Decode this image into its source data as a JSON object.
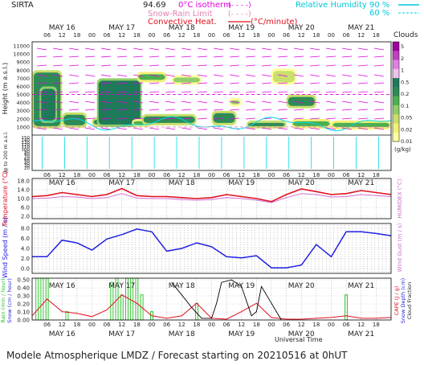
{
  "header": {
    "site": "SIRTA",
    "coords": "94.69",
    "iso_label": "0°C isotherm",
    "iso_code": "(- - - -)",
    "snowrain_label": "Snow-Rain Limit",
    "snowrain_code": "(- - - -)",
    "conv_label": "Convective Heat.",
    "conv_code": "(°C/minute)",
    "rh_label": "Relative Humidity",
    "rh_90": "90 %",
    "rh_60": "60 %",
    "clouds_label": "Clouds"
  },
  "footer": {
    "universal_time": "Universal Time",
    "forecast": "Modele Atmospherique LMDZ / Forecast starting on 20210516 at 0hUT"
  },
  "colors": {
    "cloud_scale": [
      "#ffffa0",
      "#f2f07a",
      "#c9e06e",
      "#8fce6a",
      "#4caf50",
      "#2e8b57",
      "#1f7a5a"
    ],
    "magenta": "#e000e0",
    "cyan": "#00d8e8",
    "temperature": "#e01020",
    "humidex": "#d070d0",
    "wind": "#2020e0",
    "rain": "#20c020",
    "cape": "#e01020",
    "snow": "#2020e0",
    "cloud_fraction": "#000000"
  },
  "days": [
    "MAY 16",
    "MAY 17",
    "MAY 18",
    "MAY 19",
    "MAY 20",
    "MAY 21"
  ],
  "hour_ticks": [
    "06",
    "12",
    "18",
    "00"
  ],
  "chart_data": [
    {
      "type": "heatmap",
      "name_panel": "clouds-height",
      "ylabel": "Height (m a.s.l.)",
      "ylabel_low": "Up to 200 m a.s.l.",
      "yticks": [
        "11000",
        "10000",
        "9000",
        "8000",
        "7000",
        "6000",
        "5000",
        "4000",
        "3000",
        "2000",
        "1000",
        "150",
        "140",
        "130",
        "120",
        "110",
        "100",
        "90",
        "80",
        "70",
        "60",
        "50",
        "40",
        "30",
        "20"
      ],
      "ylim": [
        0,
        11500
      ],
      "scale_labels": [
        "5",
        "2",
        "1",
        "0.5",
        "0.2",
        "0.1",
        "0.05",
        "0.02",
        "0.01"
      ],
      "scale_unit": "(g/kg)",
      "scale_colors": [
        "#a000a0",
        "#c040c0",
        "#e080e0",
        "#f0c0f0",
        "#1f7a5a",
        "#2e8b57",
        "#4caf50",
        "#8fce6a",
        "#c9e06e",
        "#f2f07a",
        "#ffffa0"
      ],
      "cloud_blobs": [
        {
          "t0": 0,
          "t1": 12,
          "z0": 800,
          "z1": 8000,
          "level": 5
        },
        {
          "t0": 3,
          "t1": 10,
          "z0": 1500,
          "z1": 6000,
          "level": 6
        },
        {
          "t0": 12,
          "t1": 22,
          "z0": 900,
          "z1": 2800,
          "level": 5
        },
        {
          "t0": 24,
          "t1": 40,
          "z0": 1000,
          "z1": 2200,
          "level": 5
        },
        {
          "t0": 26,
          "t1": 44,
          "z0": 1000,
          "z1": 7000,
          "level": 6
        },
        {
          "t0": 40,
          "t1": 48,
          "z0": 1000,
          "z1": 2000,
          "level": 4
        },
        {
          "t0": 44,
          "t1": 66,
          "z0": 1200,
          "z1": 2600,
          "level": 5
        },
        {
          "t0": 42,
          "t1": 54,
          "z0": 6500,
          "z1": 7800,
          "level": 4
        },
        {
          "t0": 56,
          "t1": 68,
          "z0": 6200,
          "z1": 7400,
          "level": 3
        },
        {
          "t0": 72,
          "t1": 82,
          "z0": 1200,
          "z1": 3000,
          "level": 5
        },
        {
          "t0": 79,
          "t1": 84,
          "z0": 3500,
          "z1": 4600,
          "level": 3
        },
        {
          "t0": 86,
          "t1": 102,
          "z0": 800,
          "z1": 1800,
          "level": 5
        },
        {
          "t0": 96,
          "t1": 106,
          "z0": 6200,
          "z1": 8200,
          "level": 2
        },
        {
          "t0": 102,
          "t1": 114,
          "z0": 3300,
          "z1": 5000,
          "level": 5
        },
        {
          "t0": 104,
          "t1": 120,
          "z0": 800,
          "z1": 2000,
          "level": 4
        },
        {
          "t0": 120,
          "t1": 144,
          "z0": 700,
          "z1": 1800,
          "level": 4
        }
      ]
    },
    {
      "type": "line",
      "name_panel": "temperature",
      "ylabel": "Temperature (°C)",
      "ylabel_right": "HUMIDEX (°C)",
      "yticks": [
        "18.0",
        "14.0",
        "10.0",
        "6.0",
        "2.0"
      ],
      "ylim": [
        0,
        20
      ],
      "x": [
        0,
        6,
        12,
        18,
        24,
        30,
        36,
        42,
        48,
        54,
        60,
        66,
        72,
        78,
        84,
        90,
        96,
        102,
        108,
        114,
        120,
        126,
        132,
        138,
        144
      ],
      "series": [
        {
          "values": [
            11,
            11.5,
            13,
            12,
            11,
            12,
            15,
            11.5,
            11,
            11,
            10.5,
            10,
            10.5,
            12,
            11,
            10,
            8.5,
            12,
            14.8,
            13.5,
            12,
            12.5,
            14,
            13,
            12
          ]
        },
        {
          "values": [
            10,
            10.2,
            11,
            10.8,
            10,
            10.5,
            12.5,
            10.2,
            10,
            10,
            9.5,
            9.2,
            9.5,
            10.5,
            10,
            9.2,
            8,
            10.5,
            12.5,
            12,
            10.8,
            11,
            12,
            11.5,
            11
          ]
        }
      ]
    },
    {
      "type": "line",
      "name_panel": "wind",
      "ylabel": "Wind Speed (m / s)",
      "ylabel_right": "Wind Gust (m / s)",
      "yticks": [
        "8.0",
        "6.0",
        "4.0",
        "2.0",
        "0.0"
      ],
      "ylim": [
        0,
        9
      ],
      "x": [
        0,
        6,
        12,
        18,
        24,
        30,
        36,
        42,
        48,
        54,
        60,
        66,
        72,
        78,
        84,
        90,
        96,
        102,
        108,
        114,
        120,
        126,
        132,
        138,
        144
      ],
      "series": [
        {
          "values": [
            3,
            3,
            6,
            5.5,
            4.2,
            6.2,
            7,
            8,
            7.5,
            4,
            4.5,
            5.5,
            4.8,
            3,
            2.8,
            3.2,
            1,
            1,
            1.5,
            5.2,
            3,
            7.5,
            7.5,
            7.2,
            6.8
          ]
        }
      ]
    },
    {
      "type": "bar",
      "name_panel": "rain-cape",
      "ylabel": "Rain (mm / hour)",
      "ylabel2": "Snow (cm / hour)",
      "ylabel_right": "CAPE (J / g)",
      "ylabel_right2": "Snow Depth (cm)",
      "ylabel_right3": "Cloud Fraction",
      "yticks": [
        "0.50",
        "0.40",
        "0.30",
        "0.20",
        "0.10",
        "0.00"
      ],
      "ylim": [
        0,
        0.5
      ],
      "rain_x": [
        2,
        4,
        6,
        14,
        32,
        34,
        36,
        38,
        40,
        42,
        44,
        48,
        66,
        126
      ],
      "rain_values": [
        0.5,
        0.5,
        0.5,
        0.1,
        0.45,
        0.5,
        0.3,
        0.5,
        0.5,
        0.5,
        0.3,
        0.1,
        0.2,
        0.3
      ],
      "cape_x": [
        0,
        6,
        12,
        18,
        24,
        30,
        36,
        42,
        48,
        54,
        60,
        66,
        72,
        78,
        84,
        90,
        96,
        102,
        108,
        114,
        120,
        126,
        132,
        138,
        144
      ],
      "cape_values": [
        0.05,
        0.25,
        0.1,
        0.08,
        0.04,
        0.12,
        0.3,
        0.2,
        0.05,
        0.02,
        0.05,
        0.2,
        0.02,
        0.01,
        0.1,
        0.2,
        0.03,
        0.01,
        0.01,
        0.02,
        0.03,
        0.05,
        0.02,
        0.02,
        0.03
      ],
      "cloudfrac_x": [
        56,
        60,
        64,
        68,
        72,
        74,
        76,
        80,
        84,
        88,
        90,
        92,
        96,
        100
      ],
      "cloudfrac_values": [
        0.45,
        0.3,
        0.15,
        0.02,
        0.02,
        0.2,
        0.45,
        0.48,
        0.4,
        0.05,
        0.1,
        0.4,
        0.2,
        0.0
      ]
    }
  ]
}
